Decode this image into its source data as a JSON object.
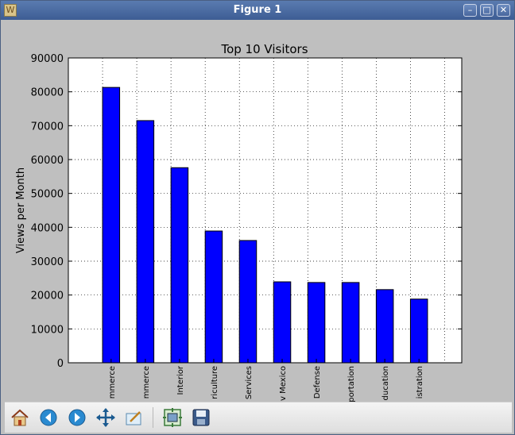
{
  "window": {
    "title": "Figure 1"
  },
  "toolbar": {
    "buttons": [
      "home-icon",
      "back-arrow-icon",
      "forward-arrow-icon",
      "pan-icon",
      "zoom-icon",
      "subplots-icon",
      "save-icon"
    ]
  },
  "colors": {
    "bar": "#0000ff",
    "titlebar": "#4a6aa3"
  },
  "chart_data": {
    "type": "bar",
    "title": "Top 10 Visitors",
    "xlabel": "",
    "ylabel": "Views per Month",
    "categories": [
      "mmerce",
      "mmerce",
      "Interior",
      "riculture",
      "Services",
      "v Mexico",
      "Defense",
      "portation",
      "ducation",
      "istration"
    ],
    "values": [
      81300,
      71500,
      57600,
      38900,
      36100,
      23900,
      23700,
      23700,
      21600,
      18800
    ],
    "ylim": [
      0,
      90000
    ],
    "yticks": [
      0,
      10000,
      20000,
      30000,
      40000,
      50000,
      60000,
      70000,
      80000,
      90000
    ],
    "xlim": [
      -1,
      10.5
    ],
    "grid": true
  }
}
